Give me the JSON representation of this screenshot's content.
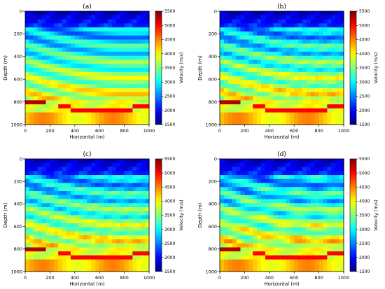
{
  "chart_data": [
    {
      "type": "heatmap",
      "title": "(a)",
      "xlabel": "Horizontal (m)",
      "ylabel": "Depth (m)",
      "xlim": [
        0,
        1000
      ],
      "ylim": [
        1000,
        0
      ],
      "xticks": [
        "0",
        "200",
        "400",
        "600",
        "800",
        "1000"
      ],
      "yticks": [
        "0",
        "200",
        "400",
        "600",
        "800",
        "1000"
      ],
      "colorbar": {
        "label": "Velocity (m/s)",
        "colormap": "jet",
        "range": [
          1500,
          5500
        ],
        "ticks": [
          "1500",
          "2000",
          "2500",
          "3000",
          "3500",
          "4000",
          "4500",
          "5000",
          "5500"
        ]
      }
    },
    {
      "type": "heatmap",
      "title": "(b)",
      "xlabel": "Horizontal (m)",
      "ylabel": "Depth (m)",
      "xlim": [
        0,
        1000
      ],
      "ylim": [
        1000,
        0
      ],
      "xticks": [
        "0",
        "200",
        "400",
        "600",
        "800",
        "1000"
      ],
      "yticks": [
        "0",
        "200",
        "400",
        "600",
        "800",
        "1000"
      ],
      "colorbar": {
        "label": "Velocity (m/s)",
        "colormap": "jet",
        "range": [
          1500,
          5500
        ],
        "ticks": [
          "1500",
          "2000",
          "2500",
          "3000",
          "3500",
          "4000",
          "4500",
          "5000",
          "5500"
        ]
      }
    },
    {
      "type": "heatmap",
      "title": "(c)",
      "xlabel": "Horizontal (m)",
      "ylabel": "Depth (m)",
      "xlim": [
        0,
        1000
      ],
      "ylim": [
        1000,
        0
      ],
      "xticks": [
        "0",
        "200",
        "400",
        "600",
        "800",
        "1000"
      ],
      "yticks": [
        "0",
        "200",
        "400",
        "600",
        "800",
        "1000"
      ],
      "colorbar": {
        "label": "Velocity (m/s)",
        "colormap": "jet",
        "range": [
          1500,
          5500
        ],
        "ticks": [
          "1500",
          "2000",
          "2500",
          "3000",
          "3500",
          "4000",
          "4500",
          "5000",
          "5500"
        ]
      }
    },
    {
      "type": "heatmap",
      "title": "(d)",
      "xlabel": "Horizontal (m)",
      "ylabel": "Depth (m)",
      "xlim": [
        0,
        1000
      ],
      "ylim": [
        1000,
        0
      ],
      "xticks": [
        "0",
        "200",
        "400",
        "600",
        "800",
        "1000"
      ],
      "yticks": [
        "0",
        "200",
        "400",
        "600",
        "800",
        "1000"
      ],
      "colorbar": {
        "label": "Velocity (m/s)",
        "colormap": "jet",
        "range": [
          1500,
          5500
        ],
        "ticks": [
          "1500",
          "2000",
          "2500",
          "3000",
          "3500",
          "4000",
          "4500",
          "5000",
          "5500"
        ]
      }
    }
  ]
}
